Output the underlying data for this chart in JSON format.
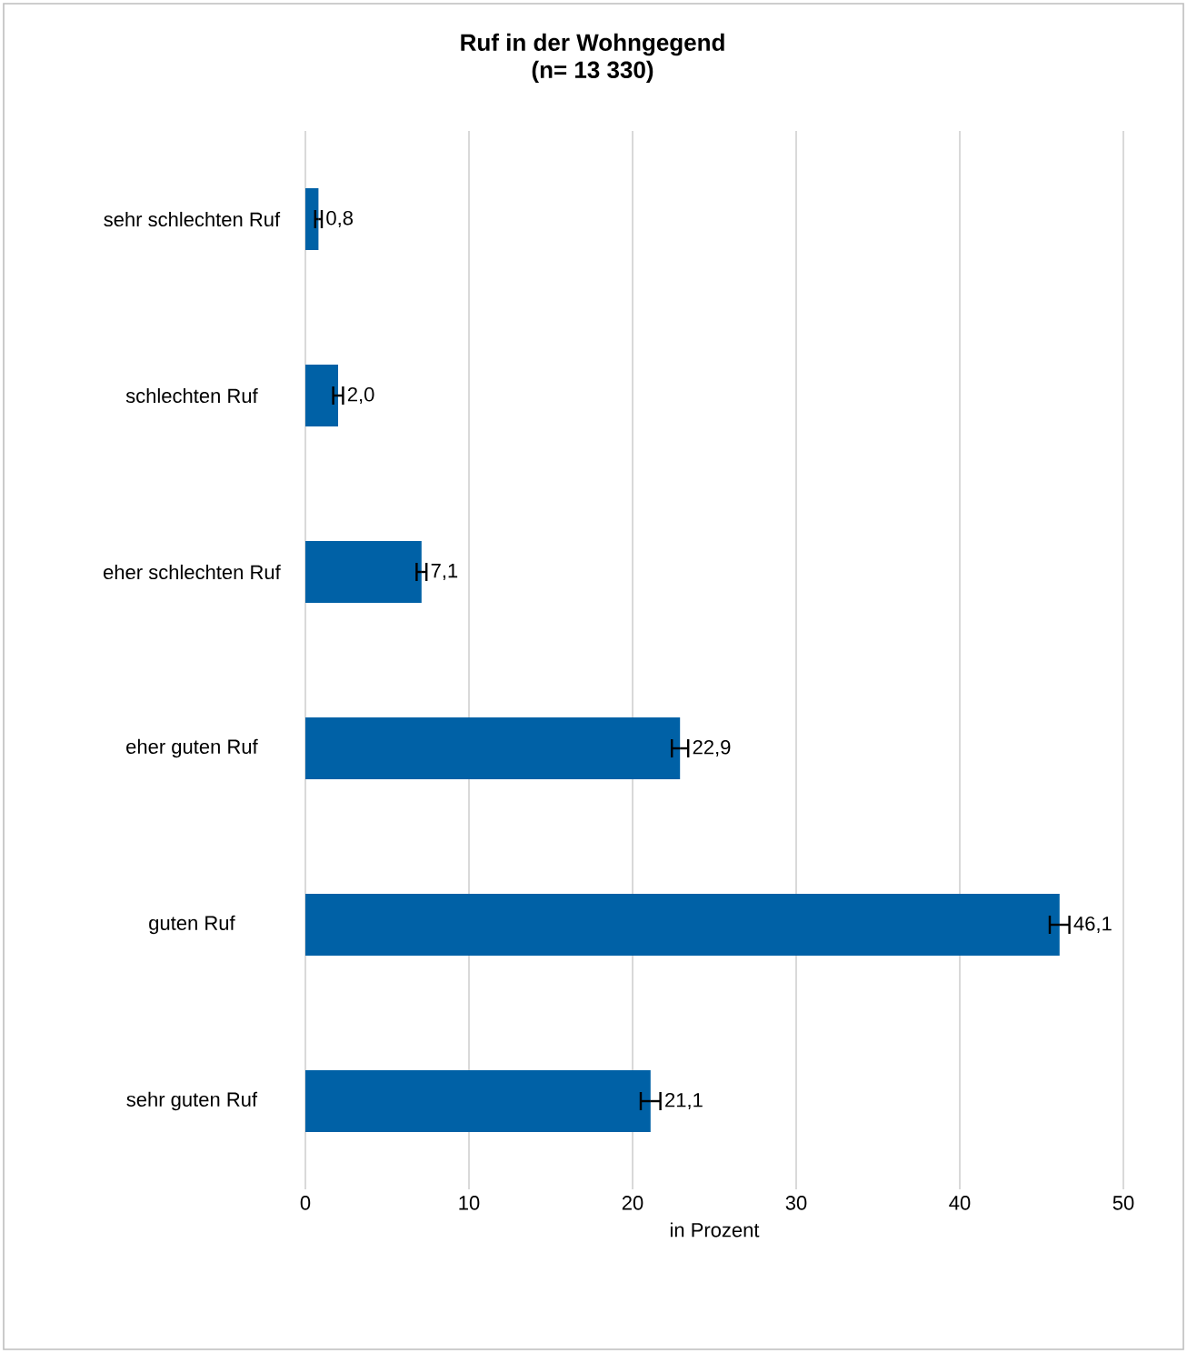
{
  "chart_data": {
    "type": "bar",
    "orientation": "horizontal",
    "title": "Ruf in der Wohngegend",
    "subtitle": "(n= 13 330)",
    "xlabel": "in Prozent",
    "categories": [
      "sehr schlechten Ruf",
      "schlechten Ruf",
      "eher schlechten Ruf",
      "eher guten Ruf",
      "guten Ruf",
      "sehr guten Ruf"
    ],
    "values": [
      0.8,
      2.0,
      7.1,
      22.9,
      46.1,
      21.1
    ],
    "errors": [
      0.2,
      0.3,
      0.3,
      0.5,
      0.6,
      0.6
    ],
    "value_labels": [
      "0,8",
      "2,0",
      "7,1",
      "22,9",
      "46,1",
      "21,1"
    ],
    "color": "#0061a6",
    "xlim": [
      0,
      50
    ],
    "xticks": [
      0,
      10,
      20,
      30,
      40,
      50
    ],
    "grid": "x"
  }
}
